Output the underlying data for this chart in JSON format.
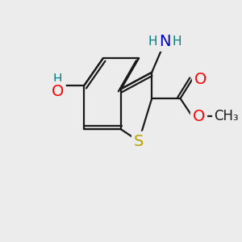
{
  "bg_color": "#ececec",
  "bond_color": "#1a1a1a",
  "bond_width": 1.6,
  "atom_colors": {
    "S": "#b8a000",
    "O": "#ff0000",
    "N": "#0000cc",
    "H": "#008080",
    "C": "#1a1a1a"
  },
  "font_size_atom": 14,
  "font_size_small": 11,
  "font_size_methyl": 12
}
